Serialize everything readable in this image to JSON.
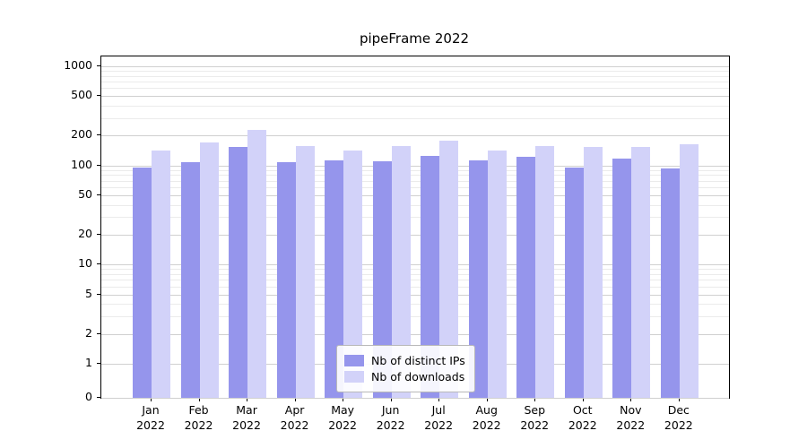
{
  "chart_data": {
    "type": "bar",
    "title": "pipeFrame 2022",
    "yscale": "symlog",
    "grid": true,
    "legend_position": "lower center",
    "categories": [
      "Jan",
      "Feb",
      "Mar",
      "Apr",
      "May",
      "Jun",
      "Jul",
      "Aug",
      "Sep",
      "Oct",
      "Nov",
      "Dec"
    ],
    "year": "2022",
    "yticks": [
      0,
      1,
      2,
      5,
      10,
      20,
      50,
      100,
      200,
      500,
      1000
    ],
    "ylim": [
      0,
      1250
    ],
    "xlabel": "",
    "ylabel": "",
    "series": [
      {
        "name": "Nb of distinct IPs",
        "color": "#9595ec",
        "values": [
          95,
          107,
          152,
          107,
          113,
          110,
          125,
          113,
          122,
          95,
          116,
          94
        ]
      },
      {
        "name": "Nb of downloads",
        "color": "#d2d2f9",
        "values": [
          140,
          172,
          228,
          158,
          142,
          158,
          178,
          140,
          158,
          152,
          155,
          163
        ]
      }
    ]
  }
}
